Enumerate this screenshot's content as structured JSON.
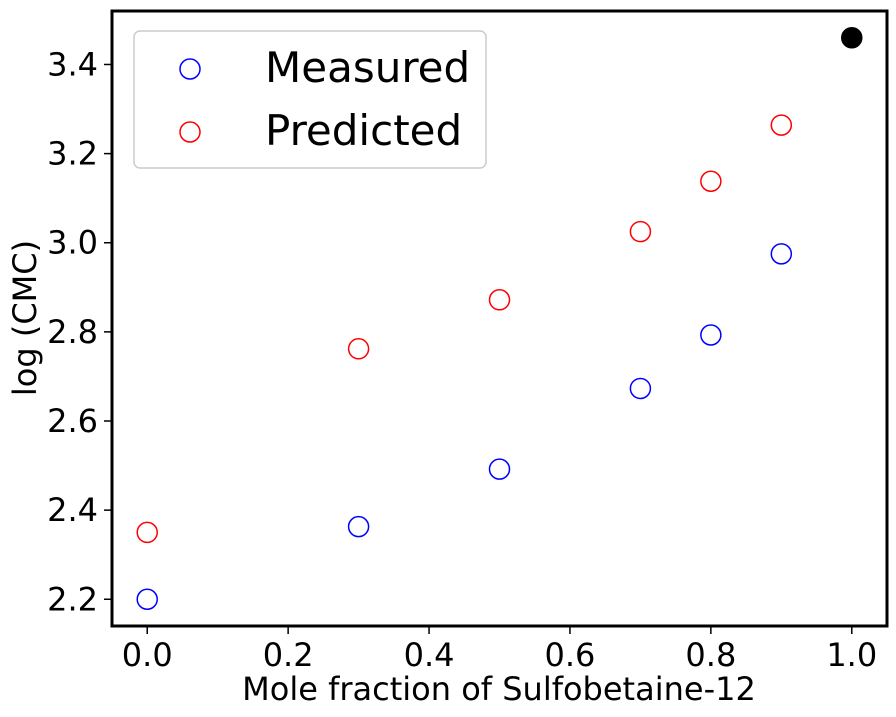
{
  "chart_data": {
    "type": "scatter",
    "title": "",
    "xlabel": "Mole fraction of Sulfobetaine-12",
    "ylabel": "log (CMC)",
    "xlim": [
      -0.05,
      1.05
    ],
    "ylim": [
      2.14,
      3.52
    ],
    "x_ticks": [
      0.0,
      0.2,
      0.4,
      0.6,
      0.8,
      1.0
    ],
    "x_tick_labels": [
      "0.0",
      "0.2",
      "0.4",
      "0.6",
      "0.8",
      "1.0"
    ],
    "y_ticks": [
      2.2,
      2.4,
      2.6,
      2.8,
      3.0,
      3.2,
      3.4
    ],
    "y_tick_labels": [
      "2.2",
      "2.4",
      "2.6",
      "2.8",
      "3.0",
      "3.2",
      "3.4"
    ],
    "grid": false,
    "legend_position": "top-left",
    "series": [
      {
        "name": "Measured",
        "marker": "open-circle",
        "color": "#0000ff",
        "x": [
          0.0,
          0.3,
          0.5,
          0.7,
          0.8,
          0.9
        ],
        "y": [
          2.2,
          2.363,
          2.492,
          2.673,
          2.793,
          2.975
        ]
      },
      {
        "name": "Predicted",
        "marker": "open-circle",
        "color": "#ff0000",
        "x": [
          0.0,
          0.3,
          0.5,
          0.7,
          0.8,
          0.9
        ],
        "y": [
          2.35,
          2.762,
          2.872,
          3.025,
          3.138,
          3.264
        ]
      },
      {
        "name": "",
        "marker": "filled-circle",
        "color": "#000000",
        "x": [
          1.0
        ],
        "y": [
          3.46
        ]
      }
    ]
  }
}
